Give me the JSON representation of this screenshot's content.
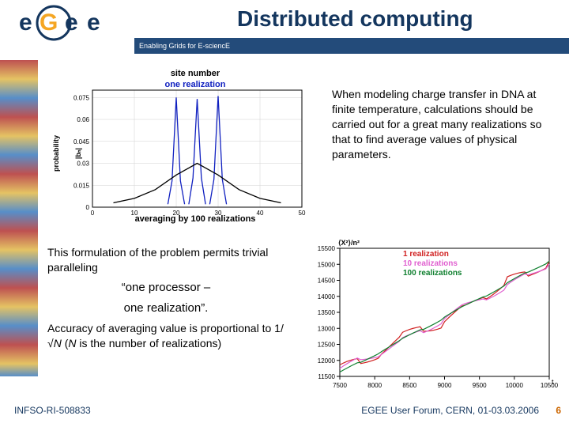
{
  "header": {
    "logo_text_e": "e",
    "logo_text_g": "G",
    "logo_text_e2": "e",
    "logo_text_e3": "e",
    "tagline": "Enabling Grids for E-sciencE",
    "slide_title": "Distributed computing"
  },
  "text_right": "When modeling charge transfer in DNA at finite temperature, calculations should be carried out for a great many realizations so that to find average values of physical parameters.",
  "text_left": {
    "line1": "This formulation of the problem permits trivial paralleling",
    "quote1": "“one processor –",
    "quote2": "one realization”.",
    "line2_pre": "Accuracy of averaging value is proportional to 1/√",
    "line2_N": "N",
    "line2_mid": "  (",
    "line2_N2": "N",
    "line2_post": " is the number of realizations)"
  },
  "footer": {
    "left": "INFSO-RI-508833",
    "right": "EGEE User Forum, CERN, 01-03.03.2006",
    "page": "6"
  },
  "chart1": {
    "type": "line",
    "title_top": "site number",
    "title_mid": "one realization",
    "title_bottom": "averaging by 100 realizations",
    "ylabel": "probability",
    "ylabel2": "|bₙ|",
    "xlim": [
      0,
      50
    ],
    "ylim": [
      0,
      0.08
    ],
    "xticks": [
      0,
      10,
      20,
      30,
      40,
      50
    ],
    "yticks": [
      0,
      0.015,
      0.03,
      0.045,
      0.06,
      0.075
    ],
    "xtick_labels": [
      "0",
      "10",
      "20",
      "30",
      "40",
      "50"
    ],
    "ytick_labels": [
      "0",
      "0.015",
      "0.03",
      "0.045",
      "0.06",
      "0.075"
    ],
    "background_color": "#ffffff",
    "grid_color": "#d0d0d0",
    "title_color_top": "#000000",
    "title_color_mid": "#1020c0",
    "title_color_bottom": "#000000",
    "title_fontsize": 11,
    "label_fontsize": 9,
    "line_width": 1.3,
    "series": [
      {
        "name": "real-1",
        "color": "#1020c0",
        "x": [
          18,
          19,
          20,
          21,
          22
        ],
        "y": [
          0.002,
          0.018,
          0.075,
          0.018,
          0.002
        ]
      },
      {
        "name": "real-2",
        "color": "#1020c0",
        "x": [
          23,
          24,
          25,
          26,
          27
        ],
        "y": [
          0.002,
          0.02,
          0.074,
          0.02,
          0.002
        ]
      },
      {
        "name": "real-3",
        "color": "#1020c0",
        "x": [
          28,
          29,
          30,
          31,
          32
        ],
        "y": [
          0.002,
          0.019,
          0.076,
          0.019,
          0.002
        ]
      },
      {
        "name": "avg-100",
        "color": "#000000",
        "x": [
          5,
          10,
          15,
          20,
          25,
          30,
          35,
          40,
          45
        ],
        "y": [
          0.003,
          0.006,
          0.012,
          0.022,
          0.03,
          0.022,
          0.012,
          0.006,
          0.003
        ]
      }
    ]
  },
  "chart2": {
    "type": "line",
    "ylabel": "⟨X²⟩/n²",
    "xlabel": "t",
    "legend": [
      {
        "label": "1 realization",
        "color": "#d02020"
      },
      {
        "label": "10 realizations",
        "color": "#e060d0"
      },
      {
        "label": "100 realizations",
        "color": "#108030"
      }
    ],
    "xlim": [
      7500,
      10500
    ],
    "ylim": [
      11500,
      15500
    ],
    "xticks": [
      7500,
      8000,
      8500,
      9000,
      9500,
      10000,
      10500
    ],
    "yticks": [
      11500,
      12000,
      12500,
      13000,
      13500,
      14000,
      14500,
      15000,
      15500
    ],
    "xtick_labels": [
      "7500",
      "8000",
      "8500",
      "9000",
      "9500",
      "10000",
      "10500"
    ],
    "ytick_labels": [
      "11500",
      "12000",
      "12500",
      "13000",
      "13500",
      "14000",
      "14500",
      "15000",
      "15500"
    ],
    "background_color": "#ffffff",
    "grid_color": "#e0e0e0",
    "label_fontsize": 9,
    "legend_fontsize": 10,
    "line_width": 1.2,
    "series": [
      {
        "name": "1-real",
        "color": "#d02020",
        "x": [
          7500,
          7800,
          8100,
          8400,
          8700,
          9000,
          9300,
          9600,
          9900,
          10200,
          10500
        ],
        "y": [
          11700,
          11950,
          12300,
          12700,
          13050,
          13200,
          13600,
          14100,
          14500,
          14600,
          15100
        ]
      },
      {
        "name": "10-real",
        "color": "#e060d0",
        "x": [
          7500,
          7800,
          8100,
          8400,
          8700,
          9000,
          9300,
          9600,
          9900,
          10200,
          10500
        ],
        "y": [
          11650,
          12050,
          12250,
          12600,
          12950,
          13300,
          13700,
          14000,
          14300,
          14650,
          15000
        ]
      },
      {
        "name": "100-real",
        "color": "#108030",
        "x": [
          7500,
          7800,
          8100,
          8400,
          8700,
          9000,
          9300,
          9600,
          9900,
          10200,
          10500
        ],
        "y": [
          11600,
          11950,
          12300,
          12650,
          13000,
          13350,
          13700,
          14050,
          14400,
          14750,
          15100
        ]
      }
    ]
  },
  "colors": {
    "header_bg": "#234b7a",
    "title_text": "#14365e",
    "footer_text": "#14365e",
    "page_number": "#cc6600",
    "logo_orange": "#f5a623",
    "logo_navy": "#14365e"
  }
}
